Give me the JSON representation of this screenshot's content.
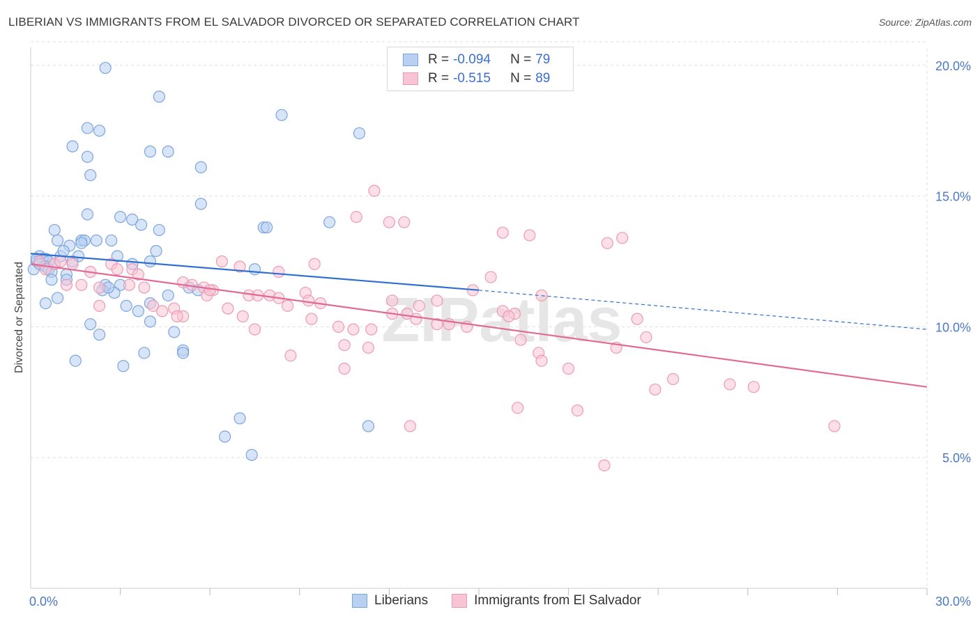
{
  "header": {
    "title": "LIBERIAN VS IMMIGRANTS FROM EL SALVADOR DIVORCED OR SEPARATED CORRELATION CHART",
    "source": "Source: ZipAtlas.com"
  },
  "watermark": "ZIPatlas",
  "legend": {
    "rows": [
      {
        "r_label": "R =",
        "r_value": "-0.094",
        "n_label": "N =",
        "n_value": "79"
      },
      {
        "r_label": "R =",
        "r_value": "-0.515",
        "n_label": "N =",
        "n_value": "89"
      }
    ]
  },
  "bottom_legend": {
    "items": [
      {
        "label": "Liberians"
      },
      {
        "label": "Immigrants from El Salvador"
      }
    ]
  },
  "colors": {
    "blue_fill": "#b8d0f2",
    "blue_stroke": "#7aa4e0",
    "blue_line": "#2f6fd0",
    "pink_fill": "#f9c4d4",
    "pink_stroke": "#ec9ab4",
    "pink_line": "#e06a95",
    "tick_text": "#4a78c8",
    "grid": "#dddddd"
  },
  "chart_data": {
    "type": "scatter",
    "title": "LIBERIAN VS IMMIGRANTS FROM EL SALVADOR DIVORCED OR SEPARATED CORRELATION CHART",
    "xlabel": "",
    "ylabel": "Divorced or Separated",
    "xlim": [
      0,
      30
    ],
    "ylim": [
      0,
      20.9
    ],
    "x_tick_labels": [
      "0.0%",
      "30.0%"
    ],
    "y_ticks": [
      5,
      10,
      15,
      20
    ],
    "y_tick_labels": [
      "5.0%",
      "10.0%",
      "15.0%",
      "20.0%"
    ],
    "grid": true,
    "legend_position": "top-center",
    "series": [
      {
        "name": "Liberians",
        "color": "blue",
        "trend": {
          "x0": 0,
          "y0": 12.8,
          "x1": 15,
          "y1": 11.4,
          "dash_to_x": 30,
          "dash_to_y": 9.9
        },
        "points": [
          [
            2.5,
            19.9
          ],
          [
            4.3,
            18.8
          ],
          [
            8.4,
            18.1
          ],
          [
            11.0,
            17.4
          ],
          [
            1.9,
            17.6
          ],
          [
            2.3,
            17.5
          ],
          [
            1.4,
            16.9
          ],
          [
            4.0,
            16.7
          ],
          [
            4.6,
            16.7
          ],
          [
            1.9,
            16.5
          ],
          [
            2.0,
            15.8
          ],
          [
            5.7,
            16.1
          ],
          [
            5.7,
            14.7
          ],
          [
            1.9,
            14.3
          ],
          [
            3.0,
            14.2
          ],
          [
            3.4,
            14.1
          ],
          [
            3.7,
            13.9
          ],
          [
            4.3,
            13.7
          ],
          [
            7.8,
            13.8
          ],
          [
            7.9,
            13.8
          ],
          [
            10.0,
            14.0
          ],
          [
            0.8,
            13.7
          ],
          [
            0.9,
            13.3
          ],
          [
            1.7,
            13.3
          ],
          [
            1.8,
            13.3
          ],
          [
            2.2,
            13.3
          ],
          [
            2.7,
            13.3
          ],
          [
            1.3,
            13.1
          ],
          [
            1.7,
            13.2
          ],
          [
            4.2,
            12.9
          ],
          [
            0.3,
            12.7
          ],
          [
            0.5,
            12.6
          ],
          [
            1.0,
            12.7
          ],
          [
            1.6,
            12.7
          ],
          [
            2.9,
            12.7
          ],
          [
            0.2,
            12.5
          ],
          [
            0.4,
            12.6
          ],
          [
            0.6,
            12.5
          ],
          [
            1.4,
            12.5
          ],
          [
            4.0,
            12.5
          ],
          [
            0.5,
            12.3
          ],
          [
            0.6,
            12.2
          ],
          [
            0.7,
            12.1
          ],
          [
            1.2,
            12.0
          ],
          [
            7.5,
            12.2
          ],
          [
            0.7,
            11.8
          ],
          [
            1.2,
            11.8
          ],
          [
            2.5,
            11.6
          ],
          [
            3.0,
            11.6
          ],
          [
            0.9,
            11.1
          ],
          [
            2.4,
            11.4
          ],
          [
            2.8,
            11.3
          ],
          [
            4.6,
            11.2
          ],
          [
            5.3,
            11.5
          ],
          [
            5.6,
            11.4
          ],
          [
            0.5,
            10.9
          ],
          [
            3.2,
            10.8
          ],
          [
            3.6,
            10.6
          ],
          [
            4.0,
            10.9
          ],
          [
            4.0,
            10.2
          ],
          [
            2.0,
            10.1
          ],
          [
            2.3,
            9.7
          ],
          [
            4.8,
            9.8
          ],
          [
            3.8,
            9.0
          ],
          [
            5.1,
            9.1
          ],
          [
            5.1,
            9.0
          ],
          [
            1.5,
            8.7
          ],
          [
            3.1,
            8.5
          ],
          [
            7.0,
            6.5
          ],
          [
            6.5,
            5.8
          ],
          [
            7.4,
            5.1
          ],
          [
            11.3,
            6.2
          ],
          [
            0.2,
            12.6
          ],
          [
            0.1,
            12.2
          ],
          [
            0.3,
            12.4
          ],
          [
            1.1,
            12.9
          ],
          [
            0.8,
            12.4
          ],
          [
            2.6,
            11.5
          ],
          [
            3.4,
            12.4
          ]
        ]
      },
      {
        "name": "Immigrants from El Salvador",
        "color": "pink",
        "trend": {
          "x0": 0,
          "y0": 12.4,
          "x1": 30,
          "y1": 7.7
        },
        "points": [
          [
            11.5,
            15.2
          ],
          [
            10.9,
            14.2
          ],
          [
            12.0,
            14.0
          ],
          [
            12.5,
            14.0
          ],
          [
            15.8,
            13.6
          ],
          [
            16.7,
            13.5
          ],
          [
            19.3,
            13.2
          ],
          [
            19.8,
            13.4
          ],
          [
            0.3,
            12.5
          ],
          [
            0.8,
            12.4
          ],
          [
            1.4,
            12.4
          ],
          [
            2.0,
            12.1
          ],
          [
            2.7,
            12.4
          ],
          [
            3.4,
            12.2
          ],
          [
            3.6,
            12.0
          ],
          [
            6.4,
            12.5
          ],
          [
            7.0,
            12.3
          ],
          [
            8.3,
            12.1
          ],
          [
            9.5,
            12.4
          ],
          [
            15.4,
            11.9
          ],
          [
            1.2,
            11.6
          ],
          [
            1.7,
            11.6
          ],
          [
            2.3,
            11.5
          ],
          [
            3.3,
            11.6
          ],
          [
            3.8,
            11.5
          ],
          [
            5.1,
            11.7
          ],
          [
            5.8,
            11.5
          ],
          [
            6.1,
            11.4
          ],
          [
            5.9,
            11.2
          ],
          [
            7.3,
            11.2
          ],
          [
            7.6,
            11.2
          ],
          [
            8.0,
            11.2
          ],
          [
            8.3,
            11.1
          ],
          [
            9.2,
            11.3
          ],
          [
            12.1,
            11.0
          ],
          [
            13.6,
            11.0
          ],
          [
            14.8,
            11.4
          ],
          [
            17.1,
            11.2
          ],
          [
            2.3,
            10.8
          ],
          [
            4.1,
            10.8
          ],
          [
            4.4,
            10.6
          ],
          [
            4.8,
            10.7
          ],
          [
            5.1,
            10.4
          ],
          [
            6.6,
            10.7
          ],
          [
            7.1,
            10.4
          ],
          [
            8.6,
            10.8
          ],
          [
            9.7,
            10.9
          ],
          [
            12.1,
            10.5
          ],
          [
            12.6,
            10.5
          ],
          [
            12.9,
            10.3
          ],
          [
            13.6,
            10.1
          ],
          [
            14.0,
            10.1
          ],
          [
            14.6,
            10.0
          ],
          [
            15.8,
            10.6
          ],
          [
            16.2,
            10.5
          ],
          [
            20.3,
            10.3
          ],
          [
            4.9,
            10.4
          ],
          [
            9.4,
            10.3
          ],
          [
            10.3,
            10.0
          ],
          [
            10.8,
            9.9
          ],
          [
            11.4,
            9.9
          ],
          [
            16.0,
            10.4
          ],
          [
            7.5,
            9.9
          ],
          [
            10.5,
            9.3
          ],
          [
            11.3,
            9.2
          ],
          [
            16.4,
            9.5
          ],
          [
            17.0,
            9.0
          ],
          [
            19.6,
            9.2
          ],
          [
            20.6,
            9.6
          ],
          [
            8.7,
            8.9
          ],
          [
            10.5,
            8.4
          ],
          [
            17.1,
            8.7
          ],
          [
            18.0,
            8.4
          ],
          [
            21.5,
            8.0
          ],
          [
            20.9,
            7.6
          ],
          [
            23.4,
            7.8
          ],
          [
            24.2,
            7.7
          ],
          [
            16.3,
            6.9
          ],
          [
            18.3,
            6.8
          ],
          [
            12.7,
            6.2
          ],
          [
            26.9,
            6.2
          ],
          [
            19.2,
            4.7
          ],
          [
            0.5,
            12.2
          ],
          [
            1.0,
            12.5
          ],
          [
            2.9,
            12.2
          ],
          [
            9.3,
            11.0
          ],
          [
            13.0,
            10.8
          ],
          [
            5.4,
            11.6
          ],
          [
            6.0,
            11.4
          ]
        ]
      }
    ]
  }
}
